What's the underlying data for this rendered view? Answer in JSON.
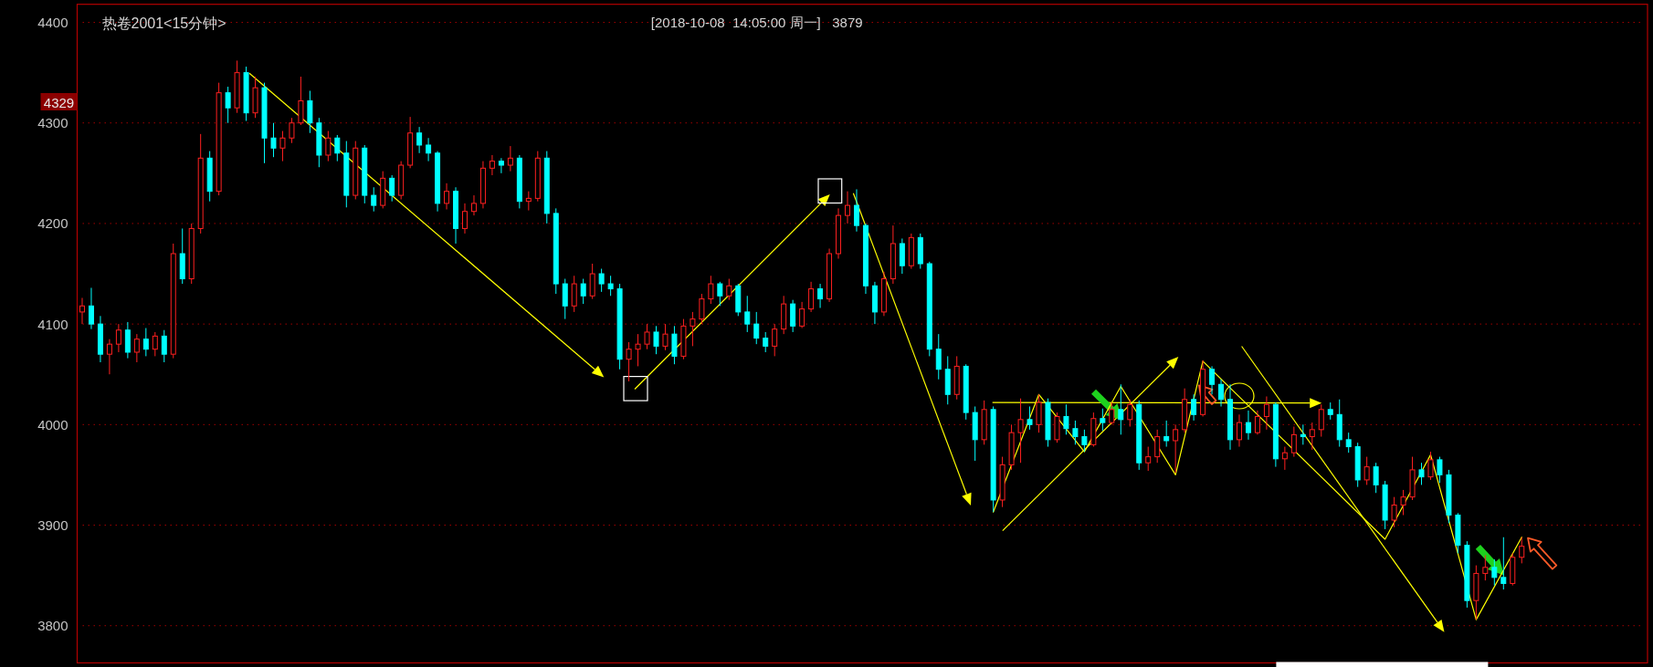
{
  "chart_data": {
    "type": "candlestick",
    "title": "热卷2001<15分钟>",
    "subtitle": "[2018-10-08  14:05:00 周一]   3879",
    "categories": [
      null,
      null,
      null,
      null,
      null,
      null,
      null,
      null,
      null,
      null,
      null,
      null,
      null,
      null,
      null,
      null,
      null,
      null,
      null,
      null,
      null,
      null,
      null,
      null,
      null,
      null,
      null,
      null,
      null,
      null,
      null,
      null,
      null,
      null,
      null,
      null,
      null,
      null,
      null,
      null,
      null,
      null,
      null,
      null,
      null,
      null,
      null,
      null,
      null,
      null,
      null,
      null,
      null,
      null,
      null,
      null,
      null,
      null,
      null,
      null,
      null,
      null,
      null,
      null,
      null,
      null,
      null,
      null,
      null,
      null,
      null,
      null,
      null,
      null,
      null,
      null,
      null,
      null,
      null,
      null,
      null,
      null,
      null,
      null,
      null,
      null,
      null,
      null,
      null,
      null,
      null,
      null,
      null,
      null,
      null,
      null,
      null,
      null,
      null,
      null,
      null,
      null,
      null,
      null,
      null,
      null,
      null,
      null,
      null,
      null,
      null,
      null,
      null,
      null,
      null,
      null,
      null,
      null,
      null,
      null,
      null,
      null,
      null,
      null,
      null,
      null,
      null,
      null,
      null,
      null,
      null,
      null,
      null,
      null,
      null,
      null,
      null,
      null,
      null,
      null,
      null,
      null,
      null,
      null,
      null,
      null,
      null,
      null,
      null,
      null,
      null,
      null,
      null,
      null,
      null,
      null,
      null,
      null,
      null
    ],
    "ohlc": [
      [
        4112,
        4126,
        4100,
        4118
      ],
      [
        4118,
        4136,
        4095,
        4100
      ],
      [
        4100,
        4108,
        4062,
        4070
      ],
      [
        4070,
        4085,
        4050,
        4080
      ],
      [
        4080,
        4100,
        4072,
        4094
      ],
      [
        4094,
        4102,
        4066,
        4072
      ],
      [
        4072,
        4090,
        4062,
        4085
      ],
      [
        4085,
        4096,
        4068,
        4075
      ],
      [
        4075,
        4092,
        4068,
        4088
      ],
      [
        4088,
        4094,
        4062,
        4070
      ],
      [
        4070,
        4180,
        4066,
        4170
      ],
      [
        4170,
        4195,
        4140,
        4145
      ],
      [
        4145,
        4200,
        4140,
        4195
      ],
      [
        4195,
        4289,
        4190,
        4265
      ],
      [
        4265,
        4272,
        4222,
        4232
      ],
      [
        4232,
        4340,
        4228,
        4330
      ],
      [
        4330,
        4336,
        4300,
        4315
      ],
      [
        4315,
        4362,
        4310,
        4350
      ],
      [
        4350,
        4356,
        4302,
        4310
      ],
      [
        4310,
        4346,
        4305,
        4335
      ],
      [
        4335,
        4340,
        4260,
        4285
      ],
      [
        4285,
        4300,
        4266,
        4275
      ],
      [
        4275,
        4292,
        4262,
        4285
      ],
      [
        4285,
        4305,
        4280,
        4300
      ],
      [
        4300,
        4346,
        4298,
        4322
      ],
      [
        4322,
        4332,
        4290,
        4300
      ],
      [
        4300,
        4305,
        4256,
        4268
      ],
      [
        4268,
        4292,
        4262,
        4285
      ],
      [
        4285,
        4288,
        4262,
        4270
      ],
      [
        4270,
        4282,
        4216,
        4228
      ],
      [
        4228,
        4282,
        4224,
        4275
      ],
      [
        4275,
        4278,
        4220,
        4228
      ],
      [
        4228,
        4236,
        4212,
        4218
      ],
      [
        4218,
        4252,
        4215,
        4245
      ],
      [
        4245,
        4248,
        4222,
        4228
      ],
      [
        4228,
        4262,
        4224,
        4258
      ],
      [
        4258,
        4306,
        4255,
        4290
      ],
      [
        4290,
        4296,
        4270,
        4278
      ],
      [
        4278,
        4285,
        4262,
        4270
      ],
      [
        4270,
        4272,
        4212,
        4220
      ],
      [
        4220,
        4240,
        4214,
        4232
      ],
      [
        4232,
        4236,
        4180,
        4195
      ],
      [
        4195,
        4220,
        4190,
        4212
      ],
      [
        4212,
        4228,
        4208,
        4220
      ],
      [
        4220,
        4262,
        4215,
        4255
      ],
      [
        4255,
        4268,
        4248,
        4262
      ],
      [
        4262,
        4265,
        4250,
        4258
      ],
      [
        4258,
        4277,
        4252,
        4265
      ],
      [
        4265,
        4268,
        4215,
        4222
      ],
      [
        4222,
        4232,
        4213,
        4225
      ],
      [
        4225,
        4272,
        4222,
        4265
      ],
      [
        4265,
        4272,
        4200,
        4210
      ],
      [
        4210,
        4215,
        4130,
        4140
      ],
      [
        4140,
        4145,
        4105,
        4118
      ],
      [
        4118,
        4148,
        4112,
        4140
      ],
      [
        4140,
        4145,
        4120,
        4128
      ],
      [
        4128,
        4160,
        4125,
        4150
      ],
      [
        4150,
        4155,
        4132,
        4140
      ],
      [
        4140,
        4148,
        4128,
        4135
      ],
      [
        4135,
        4140,
        4055,
        4065
      ],
      [
        4065,
        4082,
        4043,
        4075
      ],
      [
        4075,
        4090,
        4058,
        4080
      ],
      [
        4080,
        4100,
        4075,
        4092
      ],
      [
        4092,
        4098,
        4070,
        4078
      ],
      [
        4078,
        4100,
        4074,
        4090
      ],
      [
        4090,
        4098,
        4060,
        4068
      ],
      [
        4068,
        4105,
        4065,
        4098
      ],
      [
        4098,
        4112,
        4078,
        4105
      ],
      [
        4105,
        4130,
        4100,
        4125
      ],
      [
        4125,
        4148,
        4120,
        4140
      ],
      [
        4140,
        4142,
        4118,
        4128
      ],
      [
        4128,
        4145,
        4124,
        4138
      ],
      [
        4138,
        4140,
        4108,
        4112
      ],
      [
        4112,
        4128,
        4092,
        4100
      ],
      [
        4100,
        4112,
        4080,
        4086
      ],
      [
        4086,
        4092,
        4072,
        4078
      ],
      [
        4078,
        4100,
        4068,
        4095
      ],
      [
        4095,
        4128,
        4090,
        4120
      ],
      [
        4120,
        4124,
        4092,
        4098
      ],
      [
        4098,
        4122,
        4096,
        4115
      ],
      [
        4115,
        4142,
        4112,
        4135
      ],
      [
        4135,
        4140,
        4116,
        4125
      ],
      [
        4125,
        4175,
        4122,
        4170
      ],
      [
        4170,
        4215,
        4165,
        4208
      ],
      [
        4208,
        4232,
        4200,
        4218
      ],
      [
        4218,
        4234,
        4192,
        4198
      ],
      [
        4198,
        4200,
        4130,
        4138
      ],
      [
        4138,
        4142,
        4100,
        4112
      ],
      [
        4112,
        4152,
        4108,
        4145
      ],
      [
        4145,
        4198,
        4140,
        4180
      ],
      [
        4180,
        4185,
        4150,
        4158
      ],
      [
        4158,
        4190,
        4155,
        4186
      ],
      [
        4186,
        4190,
        4155,
        4160
      ],
      [
        4160,
        4162,
        4068,
        4075
      ],
      [
        4075,
        4090,
        4045,
        4055
      ],
      [
        4055,
        4068,
        4020,
        4030
      ],
      [
        4030,
        4068,
        4025,
        4058
      ],
      [
        4058,
        4060,
        4005,
        4012
      ],
      [
        4012,
        4018,
        3964,
        3985
      ],
      [
        3985,
        4024,
        3980,
        4015
      ],
      [
        4015,
        4018,
        3913,
        3925
      ],
      [
        3925,
        3968,
        3918,
        3960
      ],
      [
        3960,
        4000,
        3955,
        3992
      ],
      [
        3992,
        4026,
        3962,
        4005
      ],
      [
        4005,
        4018,
        3995,
        4000
      ],
      [
        4000,
        4030,
        3992,
        4022
      ],
      [
        4022,
        4026,
        3978,
        3985
      ],
      [
        3985,
        4012,
        3982,
        4008
      ],
      [
        4008,
        4020,
        3990,
        3996
      ],
      [
        3996,
        4004,
        3980,
        3988
      ],
      [
        3988,
        3995,
        3973,
        3980
      ],
      [
        3980,
        4012,
        3978,
        4006
      ],
      [
        4006,
        4016,
        3994,
        4002
      ],
      [
        4002,
        4022,
        4000,
        4015
      ],
      [
        4015,
        4040,
        3990,
        4005
      ],
      [
        4005,
        4025,
        3998,
        4020
      ],
      [
        4020,
        4024,
        3955,
        3962
      ],
      [
        3962,
        3978,
        3954,
        3968
      ],
      [
        3968,
        3995,
        3962,
        3988
      ],
      [
        3988,
        4004,
        3978,
        3984
      ],
      [
        3984,
        4000,
        3952,
        3995
      ],
      [
        3995,
        4036,
        3992,
        4025
      ],
      [
        4025,
        4030,
        4004,
        4010
      ],
      [
        4010,
        4064,
        4008,
        4055
      ],
      [
        4055,
        4058,
        4030,
        4040
      ],
      [
        4040,
        4045,
        4018,
        4025
      ],
      [
        4025,
        4040,
        3975,
        3985
      ],
      [
        3985,
        4010,
        3978,
        4002
      ],
      [
        4002,
        4014,
        3985,
        3992
      ],
      [
        3992,
        4014,
        3990,
        4008
      ],
      [
        4008,
        4028,
        3995,
        4020
      ],
      [
        4020,
        4022,
        3958,
        3966
      ],
      [
        3966,
        3978,
        3955,
        3972
      ],
      [
        3972,
        3998,
        3968,
        3990
      ],
      [
        3990,
        4000,
        3980,
        3988
      ],
      [
        3988,
        4002,
        3975,
        3995
      ],
      [
        3995,
        4020,
        3988,
        4015
      ],
      [
        4015,
        4022,
        4005,
        4010
      ],
      [
        4010,
        4025,
        3978,
        3985
      ],
      [
        3985,
        3992,
        3972,
        3978
      ],
      [
        3978,
        3982,
        3938,
        3945
      ],
      [
        3945,
        3968,
        3940,
        3958
      ],
      [
        3958,
        3962,
        3932,
        3940
      ],
      [
        3940,
        3944,
        3896,
        3905
      ],
      [
        3905,
        3928,
        3898,
        3920
      ],
      [
        3920,
        3935,
        3910,
        3928
      ],
      [
        3928,
        3968,
        3925,
        3955
      ],
      [
        3955,
        3962,
        3940,
        3948
      ],
      [
        3948,
        3973,
        3945,
        3965
      ],
      [
        3965,
        3968,
        3942,
        3950
      ],
      [
        3950,
        3955,
        3902,
        3910
      ],
      [
        3910,
        3912,
        3872,
        3880
      ],
      [
        3880,
        3884,
        3818,
        3825
      ],
      [
        3825,
        3860,
        3806,
        3852
      ],
      [
        3852,
        3870,
        3845,
        3858
      ],
      [
        3858,
        3866,
        3840,
        3848
      ],
      [
        3848,
        3888,
        3836,
        3842
      ],
      [
        3842,
        3872,
        3840,
        3868
      ],
      [
        3868,
        3888,
        3862,
        3879
      ]
    ],
    "series": [
      {
        "type": "line",
        "color": "#ffff00",
        "values": [
          null,
          null,
          null,
          null,
          null,
          null,
          null,
          null,
          null,
          null,
          null,
          null,
          null,
          null,
          null,
          null,
          null,
          null,
          null,
          null,
          null,
          null,
          null,
          null,
          null,
          null,
          null,
          null,
          null,
          null,
          null,
          null,
          null,
          null,
          null,
          null,
          null,
          null,
          null,
          null,
          null,
          null,
          null,
          null,
          null,
          null,
          null,
          null,
          null,
          null,
          null,
          null,
          null,
          null,
          null,
          null,
          null,
          null,
          null,
          null,
          null,
          null,
          null,
          null,
          null,
          null,
          null,
          null,
          null,
          null,
          null,
          null,
          null,
          null,
          null,
          null,
          null,
          null,
          null,
          null,
          null,
          null,
          null,
          null,
          null,
          null,
          null,
          null,
          null,
          null,
          null,
          null,
          null,
          null,
          null,
          null,
          null,
          null,
          null,
          null,
          3913,
          null,
          null,
          null,
          null,
          4030,
          null,
          null,
          null,
          null,
          3973,
          null,
          null,
          null,
          4038,
          null,
          null,
          null,
          null,
          null,
          3950,
          null,
          null,
          4063,
          null,
          null,
          null,
          null,
          null,
          null,
          null,
          null,
          null,
          null,
          null,
          null,
          null,
          null,
          null,
          null,
          null,
          null,
          null,
          3886,
          null,
          null,
          null,
          null,
          3970,
          null,
          null,
          null,
          null,
          3806,
          null,
          null,
          null,
          null,
          3888
        ]
      }
    ],
    "ylim": [
      3763,
      4418
    ],
    "yticks": [
      3800,
      3900,
      4000,
      4100,
      4200,
      4300,
      4400
    ],
    "grid": "y",
    "tick_labels": "y",
    "annotations": [
      "4329"
    ]
  }
}
